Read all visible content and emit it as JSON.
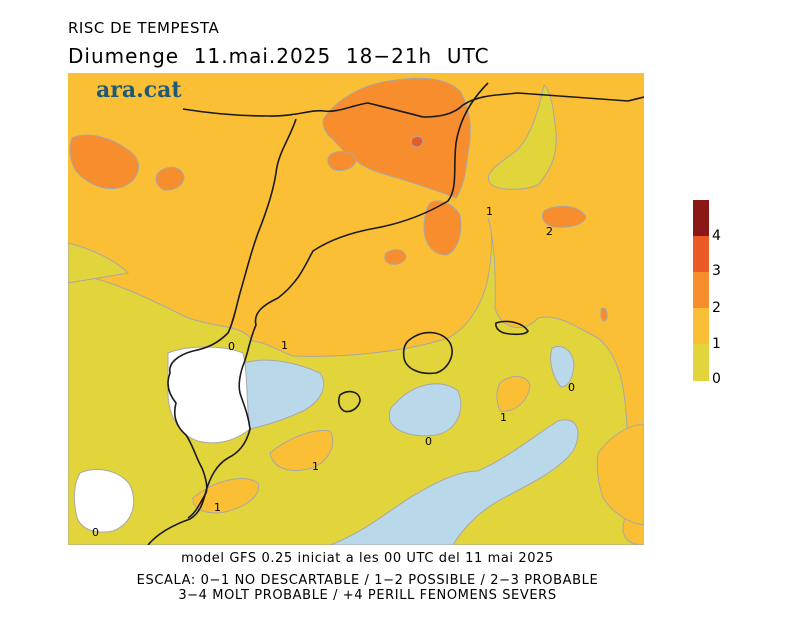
{
  "title": "RISC DE TEMPESTA",
  "subtitle": "Diumenge  11.mai.2025  18−21h  UTC",
  "brand": "ara.cat",
  "footer": {
    "model": "model GFS 0.25 iniciat a les 00 UTC del 11 mai 2025",
    "scale_line1": "ESCALA: 0−1 NO DESCARTABLE / 1−2 POSSIBLE / 2−3 PROBABLE",
    "scale_line2": "3−4 MOLT PROBABLE / +4 PERILL FENOMENS SEVERS"
  },
  "legend": {
    "levels": [
      "0",
      "1",
      "2",
      "3",
      "4"
    ],
    "colors": [
      "#e2d53c",
      "#fbbf35",
      "#f88d2e",
      "#ea5a26",
      "#8b1717"
    ]
  },
  "map_colors": {
    "level0": "#e2d53c",
    "level1": "#fbbf35",
    "level2": "#f88d2e",
    "level3": "#ea5a26",
    "cold": "#b9d8ea",
    "none": "#ffffff",
    "contour": "#a8a8a8",
    "coast": "#1a1a1a"
  },
  "contour_labels": [
    "1",
    "2",
    "0",
    "1",
    "0",
    "0",
    "1",
    "1",
    "1",
    "0"
  ]
}
